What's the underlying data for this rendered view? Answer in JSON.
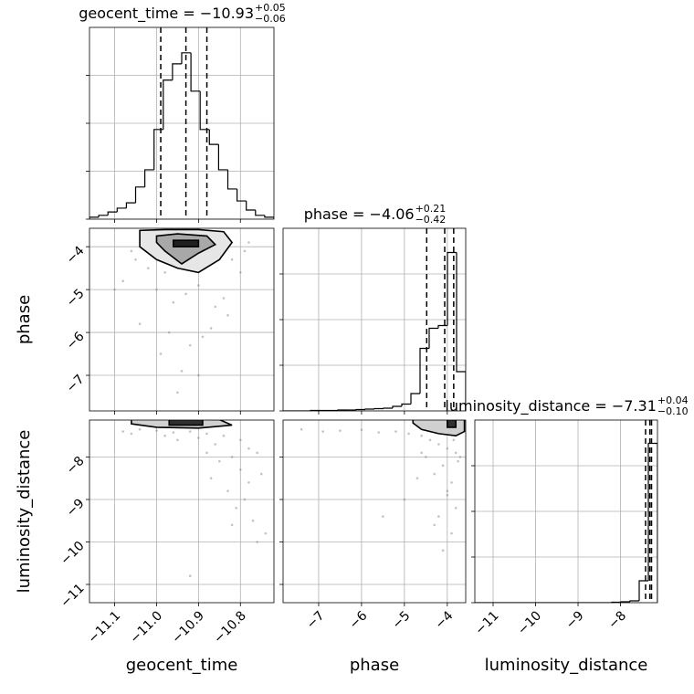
{
  "chart_data": [
    {
      "type": "histogram",
      "title": "geocent_time = −10.93",
      "title_sup": "+0.05",
      "title_sub": "−0.06",
      "bins": [
        -11.16,
        -11.138,
        -11.116,
        -11.094,
        -11.072,
        -11.05,
        -11.028,
        -11.006,
        -10.984,
        -10.962,
        -10.94,
        -10.918,
        -10.896,
        -10.874,
        -10.852,
        -10.83,
        -10.808,
        -10.786,
        -10.764,
        -10.742,
        -10.72
      ],
      "values": [
        4,
        8,
        15,
        23,
        34,
        67,
        103,
        187,
        290,
        324,
        347,
        267,
        187,
        156,
        103,
        63,
        38,
        19,
        8,
        4
      ],
      "quantiles": [
        -10.99,
        -10.93,
        -10.88
      ],
      "color": "#000000",
      "xlim": [
        -11.16,
        -10.72
      ],
      "xticks": [
        -11.1,
        -11.0,
        -10.9,
        -10.8
      ],
      "ylim": [
        0,
        400
      ],
      "yticks": [
        0,
        100,
        200,
        300
      ],
      "grid": true
    },
    {
      "type": "scatter",
      "x": [
        -11.05,
        -11.02,
        -10.98,
        -10.95,
        -10.91,
        -10.88,
        -10.85,
        -10.82,
        -10.79,
        -11.08,
        -11.0,
        -10.96,
        -10.93,
        -10.9,
        -10.86,
        -10.83,
        -11.04,
        -10.97,
        -10.92,
        -10.87,
        -10.8,
        -11.1,
        -10.99,
        -10.94,
        -10.89,
        -10.84,
        -10.78,
        -11.06,
        -10.95,
        -10.9
      ],
      "y": [
        -4.3,
        -4.5,
        -4.6,
        -4.4,
        -4.55,
        -4.35,
        -4.2,
        -4.3,
        -4.1,
        -4.8,
        -5.0,
        -5.3,
        -5.1,
        -4.9,
        -5.4,
        -5.6,
        -5.8,
        -6.0,
        -6.3,
        -5.9,
        -4.6,
        -5.0,
        -6.5,
        -6.9,
        -6.1,
        -5.2,
        -3.9,
        -4.1,
        -7.4,
        -7.0
      ],
      "contours": [
        {
          "x": [
            -11.04,
            -10.98,
            -10.9,
            -10.84,
            -10.82,
            -10.85,
            -10.9,
            -10.95,
            -11.0,
            -11.04
          ],
          "y": [
            -3.62,
            -3.6,
            -3.6,
            -3.65,
            -3.9,
            -4.3,
            -4.6,
            -4.5,
            -4.3,
            -4.0
          ],
          "fill": "#e6e6e6"
        },
        {
          "x": [
            -11.0,
            -10.95,
            -10.88,
            -10.86,
            -10.9,
            -10.94,
            -10.98,
            -11.0
          ],
          "y": [
            -3.75,
            -3.7,
            -3.75,
            -3.95,
            -4.15,
            -4.4,
            -4.1,
            -3.9
          ],
          "fill": "#a8a8a8"
        },
        {
          "x": [
            -10.96,
            -10.9,
            -10.9,
            -10.96
          ],
          "y": [
            -3.85,
            -3.85,
            -4.0,
            -4.0
          ],
          "fill": "#202020"
        }
      ],
      "color": "#888888",
      "ylabel": "phase",
      "xlim": [
        -11.16,
        -10.72
      ],
      "xticks": [
        -11.1,
        -11.0,
        -10.9,
        -10.8
      ],
      "ylim": [
        -7.83,
        -3.57
      ],
      "yticks": [
        {
          "value": -4,
          "label": "−4"
        },
        {
          "value": -5,
          "label": "−5"
        },
        {
          "value": -6,
          "label": "−6"
        },
        {
          "value": -7,
          "label": "−7"
        }
      ],
      "grid": true
    },
    {
      "type": "histogram",
      "title": "phase = −4.06",
      "title_sup": "+0.21",
      "title_sub": "−0.42",
      "bins": [
        -7.83,
        -7.617,
        -7.404,
        -7.191,
        -6.978,
        -6.765,
        -6.552,
        -6.339,
        -6.126,
        -5.913,
        -5.7,
        -5.487,
        -5.274,
        -5.061,
        -4.848,
        -4.635,
        -4.422,
        -4.209,
        -3.996,
        -3.783,
        -3.57
      ],
      "values": [
        0,
        0,
        0,
        1,
        1,
        1,
        2,
        2,
        3,
        4,
        5,
        6,
        10,
        15,
        38,
        137,
        181,
        187,
        347,
        86
      ],
      "quantiles": [
        -4.48,
        -4.06,
        -3.85
      ],
      "color": "#000000",
      "xlim": [
        -7.83,
        -3.57
      ],
      "xticks": [
        -7,
        -6,
        -5,
        -4
      ],
      "ylim": [
        0,
        400
      ],
      "yticks": [
        0,
        100,
        200,
        300
      ],
      "grid": true
    },
    {
      "type": "scatter",
      "x": [
        -11.08,
        -11.04,
        -11.0,
        -10.96,
        -10.92,
        -10.88,
        -10.84,
        -10.8,
        -10.78,
        -10.76,
        -11.06,
        -10.98,
        -10.9,
        -10.86,
        -10.82,
        -10.8,
        -10.78,
        -10.85,
        -10.83,
        -10.79,
        -10.75,
        -10.81,
        -10.77,
        -10.88,
        -10.74,
        -10.95,
        -10.87,
        -10.82,
        -10.76,
        -10.92
      ],
      "y": [
        -7.4,
        -7.35,
        -7.38,
        -7.42,
        -7.4,
        -7.45,
        -7.5,
        -7.6,
        -7.8,
        -7.9,
        -7.45,
        -7.5,
        -7.55,
        -7.7,
        -8.0,
        -8.3,
        -8.6,
        -8.1,
        -8.8,
        -9.0,
        -8.4,
        -9.2,
        -9.5,
        -7.9,
        -9.8,
        -7.6,
        -8.5,
        -9.6,
        -10.0,
        -10.8
      ],
      "contours": [
        {
          "x": [
            -11.06,
            -10.95,
            -10.85,
            -10.82,
            -10.9,
            -11.0,
            -11.06
          ],
          "y": [
            -7.1,
            -7.1,
            -7.12,
            -7.25,
            -7.32,
            -7.3,
            -7.22
          ],
          "fill": "#d0d0d0"
        },
        {
          "x": [
            -10.97,
            -10.89,
            -10.89,
            -10.97
          ],
          "y": [
            -7.12,
            -7.12,
            -7.25,
            -7.25
          ],
          "fill": "#303030"
        }
      ],
      "color": "#888888",
      "xlabel": "geocent_time",
      "ylabel": "luminosity_distance",
      "xlim": [
        -11.16,
        -10.72
      ],
      "xticks": [
        {
          "value": -11.1,
          "label": "−11.1"
        },
        {
          "value": -11.0,
          "label": "−11.0"
        },
        {
          "value": -10.9,
          "label": "−10.9"
        },
        {
          "value": -10.8,
          "label": "−10.8"
        }
      ],
      "ylim": [
        -11.43,
        -7.13
      ],
      "yticks": [
        {
          "value": -8,
          "label": "−8"
        },
        {
          "value": -9,
          "label": "−9"
        },
        {
          "value": -10,
          "label": "−10"
        },
        {
          "value": -11,
          "label": "−11"
        }
      ],
      "grid": true
    },
    {
      "type": "scatter",
      "x": [
        -7.4,
        -6.9,
        -6.5,
        -6.0,
        -5.6,
        -5.2,
        -4.9,
        -4.6,
        -4.4,
        -4.2,
        -4.0,
        -3.8,
        -3.7,
        -4.1,
        -4.3,
        -3.9,
        -4.5,
        -4.0,
        -3.8,
        -4.2,
        -4.7,
        -5.0,
        -3.9,
        -4.1,
        -4.3,
        -3.75,
        -4.6,
        -5.5,
        -4.0,
        -3.85
      ],
      "y": [
        -7.35,
        -7.4,
        -7.38,
        -7.36,
        -7.42,
        -7.4,
        -7.45,
        -7.5,
        -7.6,
        -7.7,
        -7.8,
        -7.9,
        -8.0,
        -8.2,
        -8.4,
        -8.6,
        -8.0,
        -8.9,
        -9.2,
        -9.4,
        -8.5,
        -9.0,
        -9.8,
        -10.2,
        -9.6,
        -8.1,
        -7.9,
        -9.4,
        -8.8,
        -7.6
      ],
      "contours": [
        {
          "x": [
            -4.8,
            -4.2,
            -3.6,
            -3.6,
            -3.8,
            -4.2,
            -4.6,
            -4.8
          ],
          "y": [
            -7.1,
            -7.1,
            -7.12,
            -7.4,
            -7.5,
            -7.45,
            -7.35,
            -7.2
          ],
          "fill": "#d0d0d0"
        },
        {
          "x": [
            -4.0,
            -3.8,
            -3.8,
            -4.0
          ],
          "y": [
            -7.12,
            -7.12,
            -7.3,
            -7.3
          ],
          "fill": "#303030"
        }
      ],
      "color": "#888888",
      "xlabel": "phase",
      "xlim": [
        -7.83,
        -3.57
      ],
      "xticks": [
        {
          "value": -7,
          "label": "−7"
        },
        {
          "value": -6,
          "label": "−6"
        },
        {
          "value": -5,
          "label": "−5"
        },
        {
          "value": -4,
          "label": "−4"
        }
      ],
      "ylim": [
        -11.43,
        -7.13
      ],
      "yticks": [
        -8,
        -9,
        -10,
        -11
      ],
      "grid": true
    },
    {
      "type": "histogram",
      "title": "luminosity_distance = −7.31",
      "title_sup": "+0.04",
      "title_sub": "−0.10",
      "bins": [
        -11.43,
        -11.215,
        -11.0,
        -10.785,
        -10.57,
        -10.355,
        -10.14,
        -9.925,
        -9.71,
        -9.495,
        -9.28,
        -9.065,
        -8.85,
        -8.635,
        -8.42,
        -8.205,
        -7.99,
        -7.775,
        -7.56,
        -7.345,
        -7.13
      ],
      "values": [
        0,
        0,
        0,
        0,
        0,
        0,
        0,
        0,
        0,
        0,
        0,
        0,
        0,
        0,
        0,
        1,
        2,
        4,
        48,
        349
      ],
      "quantiles": [
        -7.41,
        -7.31,
        -7.27
      ],
      "color": "#000000",
      "xlabel": "luminosity_distance",
      "xlim": [
        -11.43,
        -7.13
      ],
      "xticks": [
        {
          "value": -11,
          "label": "−11"
        },
        {
          "value": -10,
          "label": "−10"
        },
        {
          "value": -9,
          "label": "−9"
        },
        {
          "value": -8,
          "label": "−8"
        }
      ],
      "ylim": [
        0,
        400
      ],
      "yticks": [
        0,
        100,
        200,
        300
      ],
      "grid": true
    }
  ]
}
